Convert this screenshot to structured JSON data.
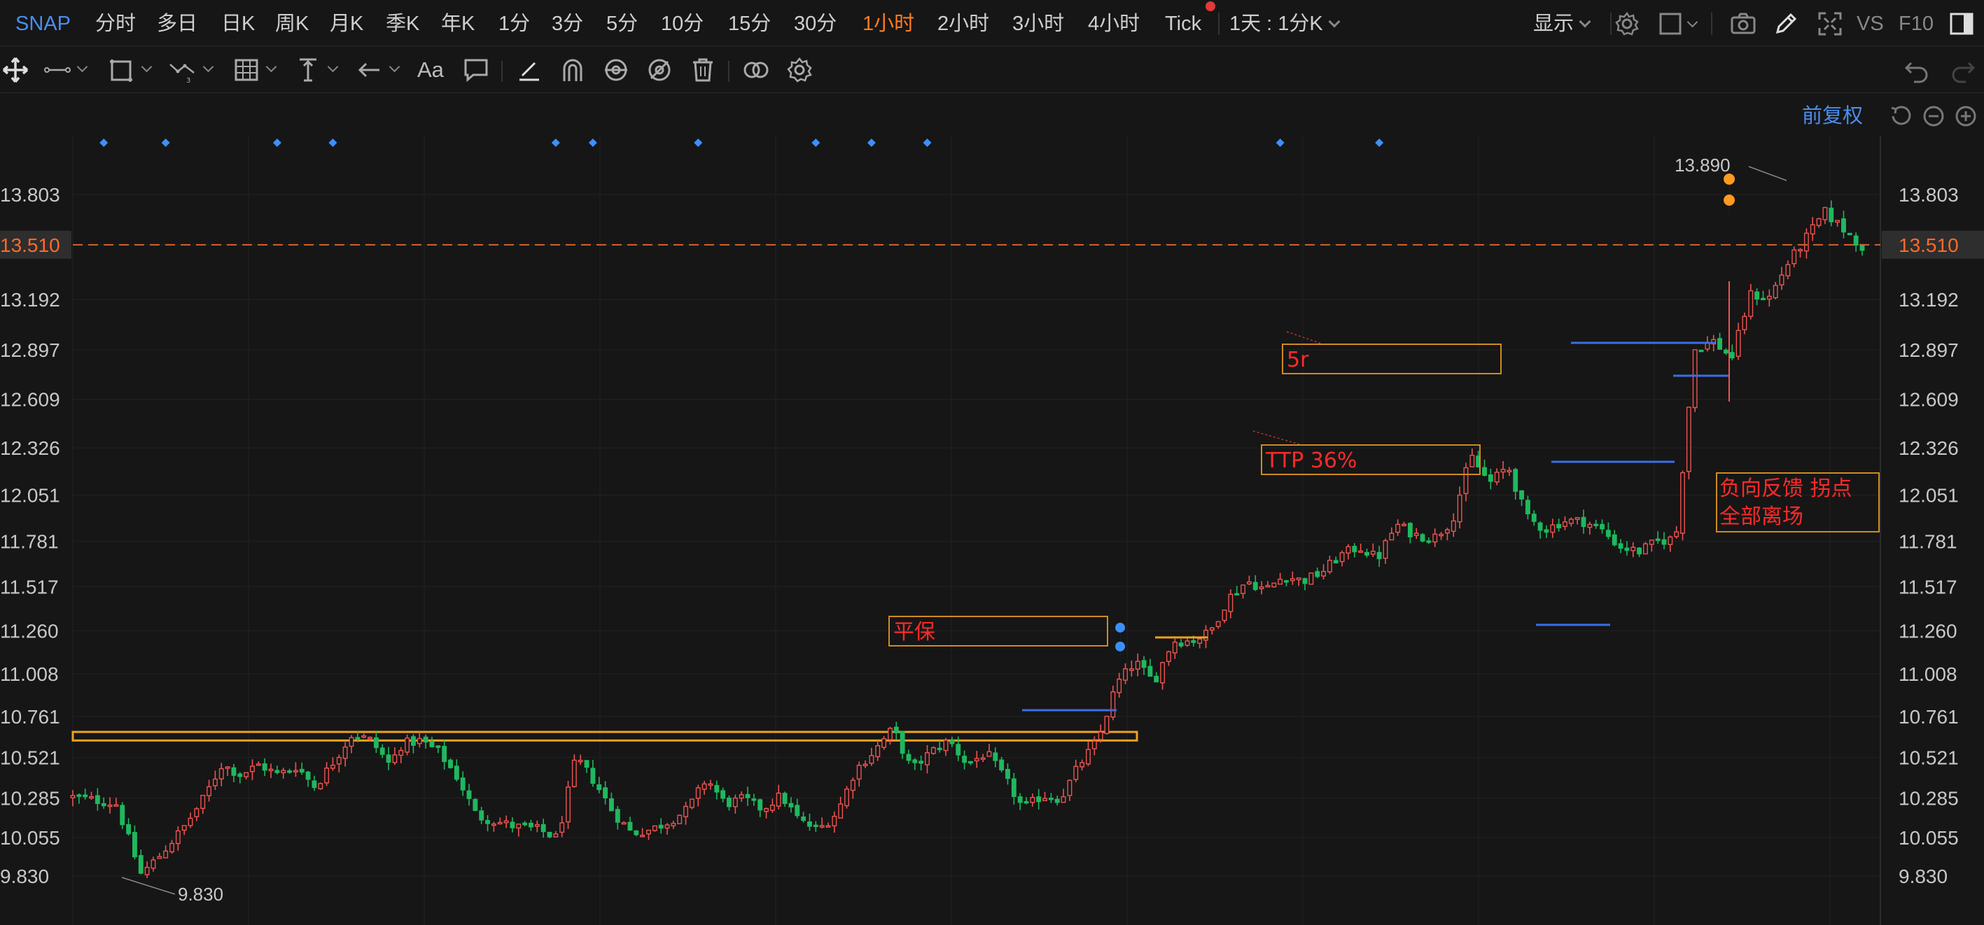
{
  "toolbar": {
    "symbol": "SNAP",
    "timeframes": [
      "分时",
      "多日",
      "日K",
      "周K",
      "月K",
      "季K",
      "年K",
      "1分",
      "3分",
      "5分",
      "10分",
      "15分",
      "30分",
      "1小时",
      "2小时",
      "3小时",
      "4小时",
      "Tick"
    ],
    "active_timeframe": "1小时",
    "range_select": "1天 : 1分K",
    "display_label": "显示",
    "right_labels": [
      "VS",
      "F10"
    ],
    "accent_color": "#ff7d1f",
    "symbol_color": "#4a8ef0"
  },
  "draw_toolbar": {
    "icons": [
      "move-icon",
      "ruler-icon",
      "rectangle-tool-icon",
      "trend-line-icon",
      "grid-icon",
      "vertical-align-icon",
      "arrow-left-icon",
      "text-tool-icon",
      "comment-icon",
      "pen-icon",
      "magnet-icon",
      "eye-settings-icon",
      "hide-icon",
      "trash-icon",
      "link-icon",
      "gear-icon",
      "undo-icon",
      "redo-icon"
    ],
    "text_tool_label": "Aa"
  },
  "chart_header": {
    "adjust_label": "前复权"
  },
  "chart_data": {
    "type": "candlestick",
    "symbol": "SNAP",
    "interval": "1小时",
    "y_axis_ticks": [
      "13.803",
      "13.510",
      "13.192",
      "12.897",
      "12.609",
      "12.326",
      "12.051",
      "11.781",
      "11.517",
      "11.260",
      "11.008",
      "10.761",
      "10.521",
      "10.285",
      "10.055",
      "9.830"
    ],
    "ylim": [
      9.7,
      14.15
    ],
    "current_price": "13.510",
    "current_price_value": 13.51,
    "high_label": "13.890",
    "low_label": "9.830",
    "up_color": "#ef5350",
    "down_color": "#1fb85f",
    "grid": true,
    "anchors": [
      [
        0,
        10.29
      ],
      [
        4,
        10.27
      ],
      [
        7,
        10.25
      ],
      [
        11,
        9.84
      ],
      [
        14,
        9.95
      ],
      [
        18,
        10.12
      ],
      [
        21,
        10.28
      ],
      [
        24,
        10.48
      ],
      [
        27,
        10.42
      ],
      [
        30,
        10.48
      ],
      [
        33,
        10.42
      ],
      [
        36,
        10.47
      ],
      [
        39,
        10.35
      ],
      [
        42,
        10.5
      ],
      [
        45,
        10.66
      ],
      [
        48,
        10.62
      ],
      [
        51,
        10.48
      ],
      [
        53,
        10.6
      ],
      [
        56,
        10.62
      ],
      [
        59,
        10.55
      ],
      [
        62,
        10.4
      ],
      [
        65,
        10.18
      ],
      [
        68,
        10.15
      ],
      [
        71,
        10.12
      ],
      [
        75,
        10.1
      ],
      [
        78,
        10.05
      ],
      [
        81,
        10.52
      ],
      [
        84,
        10.38
      ],
      [
        87,
        10.2
      ],
      [
        90,
        10.08
      ],
      [
        93,
        10.1
      ],
      [
        96,
        10.15
      ],
      [
        99,
        10.22
      ],
      [
        102,
        10.4
      ],
      [
        105,
        10.25
      ],
      [
        108,
        10.28
      ],
      [
        111,
        10.22
      ],
      [
        114,
        10.3
      ],
      [
        117,
        10.15
      ],
      [
        120,
        10.1
      ],
      [
        123,
        10.2
      ],
      [
        126,
        10.45
      ],
      [
        129,
        10.56
      ],
      [
        132,
        10.69
      ],
      [
        135,
        10.45
      ],
      [
        138,
        10.55
      ],
      [
        141,
        10.62
      ],
      [
        144,
        10.48
      ],
      [
        147,
        10.55
      ],
      [
        150,
        10.4
      ],
      [
        153,
        10.22
      ],
      [
        156,
        10.3
      ],
      [
        159,
        10.28
      ],
      [
        162,
        10.48
      ],
      [
        165,
        10.62
      ],
      [
        168,
        10.95
      ],
      [
        171,
        11.08
      ],
      [
        174,
        10.96
      ],
      [
        177,
        11.2
      ],
      [
        180,
        11.2
      ],
      [
        183,
        11.25
      ],
      [
        186,
        11.45
      ],
      [
        189,
        11.55
      ],
      [
        192,
        11.5
      ],
      [
        195,
        11.58
      ],
      [
        198,
        11.55
      ],
      [
        201,
        11.6
      ],
      [
        204,
        11.7
      ],
      [
        207,
        11.75
      ],
      [
        210,
        11.68
      ],
      [
        213,
        11.88
      ],
      [
        216,
        11.82
      ],
      [
        219,
        11.8
      ],
      [
        222,
        11.9
      ],
      [
        225,
        12.28
      ],
      [
        228,
        12.12
      ],
      [
        231,
        12.22
      ],
      [
        234,
        11.92
      ],
      [
        237,
        11.85
      ],
      [
        240,
        11.9
      ],
      [
        243,
        11.9
      ],
      [
        246,
        11.85
      ],
      [
        249,
        11.75
      ],
      [
        252,
        11.72
      ],
      [
        255,
        11.78
      ],
      [
        258,
        11.8
      ],
      [
        261,
        12.9
      ],
      [
        264,
        12.95
      ],
      [
        267,
        12.85
      ],
      [
        270,
        13.22
      ],
      [
        273,
        13.2
      ],
      [
        276,
        13.4
      ],
      [
        279,
        13.55
      ],
      [
        282,
        13.7
      ],
      [
        285,
        13.6
      ],
      [
        288,
        13.5
      ]
    ],
    "markers": {
      "blue_diamonds_index": [
        5,
        15,
        33,
        42,
        78,
        84,
        101,
        120,
        129,
        138,
        195,
        211
      ],
      "flag_labels": []
    },
    "annotations": [
      {
        "label": "5r",
        "color": "#ff2a2a"
      },
      {
        "label": "TTP 36%",
        "color": "#ff2a2a"
      },
      {
        "label": "平保",
        "color": "#ff2a2a"
      },
      {
        "label": "负向反馈 拐点",
        "color": "#ff2a2a"
      },
      {
        "label": "全部离场",
        "color": "#ff2a2a"
      }
    ],
    "resistance_zone": [
      10.62,
      10.67
    ]
  }
}
